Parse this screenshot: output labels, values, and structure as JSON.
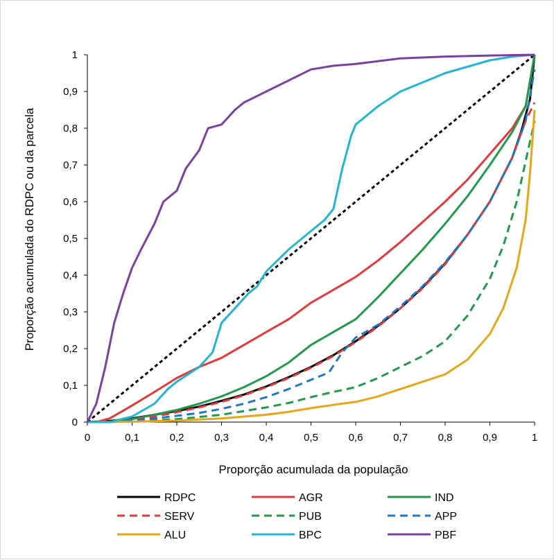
{
  "chart_data": {
    "type": "line",
    "title": "",
    "xlabel": "Proporção acumulada da população",
    "ylabel": "Proporção acumulada do RDPC ou da parcela",
    "xlim": [
      0,
      1
    ],
    "ylim": [
      0,
      1
    ],
    "x_tick_labels": [
      "0",
      "0,1",
      "0,2",
      "0,3",
      "0,4",
      "0,5",
      "0,6",
      "0,7",
      "0,8",
      "0,9",
      "1"
    ],
    "y_tick_labels": [
      "0",
      "0,1",
      "0,2",
      "0,3",
      "0,4",
      "0,5",
      "0,6",
      "0,7",
      "0,8",
      "0,9",
      "1"
    ],
    "grid": false,
    "legend_position": "bottom",
    "series": [
      {
        "name": "RDPC",
        "color": "#000000",
        "dash": "solid",
        "points": [
          [
            0,
            0
          ],
          [
            0.05,
            0.003
          ],
          [
            0.1,
            0.01
          ],
          [
            0.15,
            0.02
          ],
          [
            0.2,
            0.03
          ],
          [
            0.25,
            0.042
          ],
          [
            0.3,
            0.058
          ],
          [
            0.35,
            0.075
          ],
          [
            0.4,
            0.097
          ],
          [
            0.45,
            0.122
          ],
          [
            0.5,
            0.15
          ],
          [
            0.55,
            0.182
          ],
          [
            0.6,
            0.22
          ],
          [
            0.65,
            0.262
          ],
          [
            0.7,
            0.31
          ],
          [
            0.75,
            0.367
          ],
          [
            0.8,
            0.432
          ],
          [
            0.85,
            0.51
          ],
          [
            0.9,
            0.6
          ],
          [
            0.95,
            0.72
          ],
          [
            0.97,
            0.79
          ],
          [
            0.99,
            0.88
          ],
          [
            1,
            1
          ]
        ]
      },
      {
        "name": "AGR",
        "color": "#e8373b",
        "dash": "solid",
        "points": [
          [
            0,
            0
          ],
          [
            0.02,
            0
          ],
          [
            0.05,
            0.01
          ],
          [
            0.1,
            0.045
          ],
          [
            0.15,
            0.082
          ],
          [
            0.2,
            0.12
          ],
          [
            0.25,
            0.15
          ],
          [
            0.3,
            0.175
          ],
          [
            0.35,
            0.21
          ],
          [
            0.4,
            0.245
          ],
          [
            0.45,
            0.28
          ],
          [
            0.5,
            0.325
          ],
          [
            0.55,
            0.36
          ],
          [
            0.6,
            0.395
          ],
          [
            0.65,
            0.44
          ],
          [
            0.7,
            0.49
          ],
          [
            0.75,
            0.545
          ],
          [
            0.8,
            0.6
          ],
          [
            0.85,
            0.66
          ],
          [
            0.9,
            0.73
          ],
          [
            0.95,
            0.8
          ],
          [
            0.98,
            0.86
          ],
          [
            1,
            1
          ]
        ]
      },
      {
        "name": "IND",
        "color": "#1e9b4a",
        "dash": "solid",
        "points": [
          [
            0,
            0
          ],
          [
            0.05,
            0
          ],
          [
            0.1,
            0.008
          ],
          [
            0.15,
            0.02
          ],
          [
            0.2,
            0.033
          ],
          [
            0.25,
            0.05
          ],
          [
            0.3,
            0.07
          ],
          [
            0.35,
            0.095
          ],
          [
            0.4,
            0.125
          ],
          [
            0.45,
            0.162
          ],
          [
            0.5,
            0.21
          ],
          [
            0.55,
            0.245
          ],
          [
            0.6,
            0.28
          ],
          [
            0.65,
            0.34
          ],
          [
            0.7,
            0.405
          ],
          [
            0.75,
            0.47
          ],
          [
            0.8,
            0.54
          ],
          [
            0.85,
            0.615
          ],
          [
            0.9,
            0.7
          ],
          [
            0.95,
            0.79
          ],
          [
            0.98,
            0.86
          ],
          [
            1,
            1
          ]
        ]
      },
      {
        "name": "SERV",
        "color": "#e8373b",
        "dash": "dash",
        "points": [
          [
            0,
            0
          ],
          [
            0.05,
            0
          ],
          [
            0.1,
            0.005
          ],
          [
            0.15,
            0.015
          ],
          [
            0.2,
            0.027
          ],
          [
            0.25,
            0.04
          ],
          [
            0.3,
            0.055
          ],
          [
            0.35,
            0.073
          ],
          [
            0.4,
            0.095
          ],
          [
            0.45,
            0.12
          ],
          [
            0.5,
            0.148
          ],
          [
            0.55,
            0.18
          ],
          [
            0.6,
            0.218
          ],
          [
            0.65,
            0.26
          ],
          [
            0.7,
            0.31
          ],
          [
            0.75,
            0.365
          ],
          [
            0.8,
            0.43
          ],
          [
            0.85,
            0.51
          ],
          [
            0.9,
            0.6
          ],
          [
            0.95,
            0.72
          ],
          [
            0.98,
            0.82
          ],
          [
            1,
            0.87
          ]
        ]
      },
      {
        "name": "PUB",
        "color": "#1e9b4a",
        "dash": "dash",
        "points": [
          [
            0,
            0
          ],
          [
            0.1,
            0.002
          ],
          [
            0.2,
            0.008
          ],
          [
            0.3,
            0.02
          ],
          [
            0.35,
            0.03
          ],
          [
            0.4,
            0.04
          ],
          [
            0.45,
            0.052
          ],
          [
            0.5,
            0.068
          ],
          [
            0.55,
            0.082
          ],
          [
            0.6,
            0.095
          ],
          [
            0.65,
            0.12
          ],
          [
            0.7,
            0.15
          ],
          [
            0.75,
            0.18
          ],
          [
            0.8,
            0.22
          ],
          [
            0.85,
            0.29
          ],
          [
            0.9,
            0.39
          ],
          [
            0.93,
            0.48
          ],
          [
            0.96,
            0.6
          ],
          [
            0.98,
            0.71
          ],
          [
            1,
            0.82
          ]
        ]
      },
      {
        "name": "APP",
        "color": "#1f77c4",
        "dash": "dash",
        "points": [
          [
            0,
            0
          ],
          [
            0.05,
            0
          ],
          [
            0.1,
            0.003
          ],
          [
            0.15,
            0.01
          ],
          [
            0.2,
            0.017
          ],
          [
            0.25,
            0.025
          ],
          [
            0.3,
            0.036
          ],
          [
            0.35,
            0.05
          ],
          [
            0.4,
            0.068
          ],
          [
            0.45,
            0.09
          ],
          [
            0.5,
            0.115
          ],
          [
            0.54,
            0.135
          ],
          [
            0.57,
            0.19
          ],
          [
            0.6,
            0.23
          ],
          [
            0.65,
            0.265
          ],
          [
            0.7,
            0.315
          ],
          [
            0.75,
            0.37
          ],
          [
            0.8,
            0.435
          ],
          [
            0.85,
            0.51
          ],
          [
            0.9,
            0.6
          ],
          [
            0.95,
            0.72
          ],
          [
            0.98,
            0.82
          ],
          [
            1,
            0.96
          ]
        ]
      },
      {
        "name": "ALU",
        "color": "#e8a515",
        "dash": "solid",
        "points": [
          [
            0,
            0
          ],
          [
            0.1,
            0.001
          ],
          [
            0.2,
            0.004
          ],
          [
            0.3,
            0.01
          ],
          [
            0.35,
            0.015
          ],
          [
            0.4,
            0.02
          ],
          [
            0.45,
            0.028
          ],
          [
            0.5,
            0.038
          ],
          [
            0.55,
            0.047
          ],
          [
            0.6,
            0.055
          ],
          [
            0.65,
            0.07
          ],
          [
            0.7,
            0.09
          ],
          [
            0.75,
            0.11
          ],
          [
            0.8,
            0.13
          ],
          [
            0.85,
            0.17
          ],
          [
            0.9,
            0.24
          ],
          [
            0.93,
            0.31
          ],
          [
            0.96,
            0.42
          ],
          [
            0.98,
            0.55
          ],
          [
            0.99,
            0.68
          ],
          [
            1,
            0.85
          ]
        ]
      },
      {
        "name": "BPC",
        "color": "#1fb5d4",
        "dash": "solid",
        "points": [
          [
            0,
            0
          ],
          [
            0.05,
            0
          ],
          [
            0.1,
            0.015
          ],
          [
            0.15,
            0.05
          ],
          [
            0.18,
            0.09
          ],
          [
            0.2,
            0.11
          ],
          [
            0.25,
            0.15
          ],
          [
            0.28,
            0.19
          ],
          [
            0.3,
            0.27
          ],
          [
            0.33,
            0.31
          ],
          [
            0.36,
            0.35
          ],
          [
            0.38,
            0.37
          ],
          [
            0.4,
            0.41
          ],
          [
            0.45,
            0.47
          ],
          [
            0.5,
            0.52
          ],
          [
            0.53,
            0.55
          ],
          [
            0.55,
            0.58
          ],
          [
            0.57,
            0.69
          ],
          [
            0.59,
            0.78
          ],
          [
            0.6,
            0.81
          ],
          [
            0.65,
            0.86
          ],
          [
            0.7,
            0.9
          ],
          [
            0.8,
            0.95
          ],
          [
            0.9,
            0.985
          ],
          [
            0.95,
            0.995
          ],
          [
            1,
            1
          ]
        ]
      },
      {
        "name": "PBF",
        "color": "#7a3fa0",
        "dash": "solid",
        "points": [
          [
            0,
            0
          ],
          [
            0.02,
            0.05
          ],
          [
            0.04,
            0.15
          ],
          [
            0.06,
            0.27
          ],
          [
            0.08,
            0.35
          ],
          [
            0.1,
            0.42
          ],
          [
            0.12,
            0.47
          ],
          [
            0.15,
            0.54
          ],
          [
            0.17,
            0.6
          ],
          [
            0.2,
            0.63
          ],
          [
            0.22,
            0.69
          ],
          [
            0.25,
            0.74
          ],
          [
            0.27,
            0.8
          ],
          [
            0.3,
            0.81
          ],
          [
            0.33,
            0.85
          ],
          [
            0.35,
            0.87
          ],
          [
            0.4,
            0.9
          ],
          [
            0.45,
            0.93
          ],
          [
            0.5,
            0.96
          ],
          [
            0.55,
            0.97
          ],
          [
            0.6,
            0.975
          ],
          [
            0.7,
            0.99
          ],
          [
            0.8,
            0.995
          ],
          [
            0.9,
            0.998
          ],
          [
            1,
            1
          ]
        ]
      }
    ],
    "reference_line": {
      "color": "#000000",
      "dash": "short-dash",
      "points": [
        [
          0,
          0
        ],
        [
          1,
          1
        ]
      ]
    }
  }
}
